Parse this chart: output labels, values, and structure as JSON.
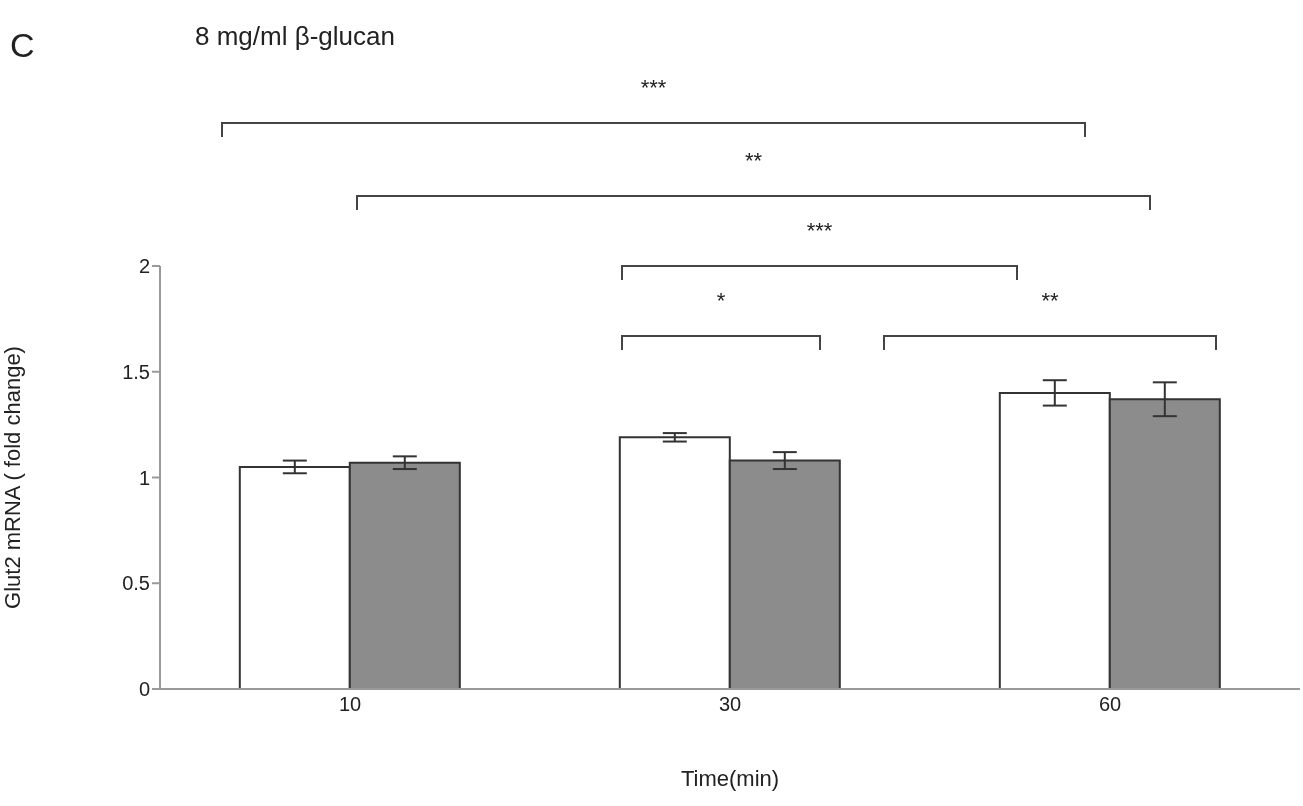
{
  "chart_data": {
    "type": "bar",
    "title": "8 mg/ml β-glucan",
    "xlabel": "Time(min)",
    "ylabel": "Glut2 mRNA ( fold change)",
    "categories": [
      "10",
      "30",
      "60"
    ],
    "series": [
      {
        "color": "#ffffff",
        "values": [
          1.05,
          1.19,
          1.4
        ],
        "errors": [
          0.03,
          0.02,
          0.06
        ]
      },
      {
        "color": "#8c8c8c",
        "values": [
          1.07,
          1.08,
          1.37
        ],
        "errors": [
          0.03,
          0.04,
          0.08
        ]
      }
    ],
    "ylim": [
      0,
      2
    ],
    "yticks": [
      0,
      0.5,
      1,
      1.5,
      2
    ],
    "annotations": [
      "C",
      "***",
      "**",
      "***",
      "*",
      "**"
    ]
  }
}
